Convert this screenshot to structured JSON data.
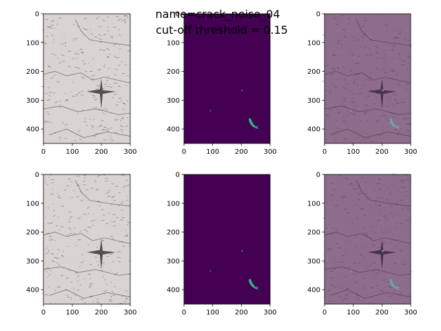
{
  "suptitle": [
    "name=crack_noise_04",
    "cut-off threshold = 0.15"
  ],
  "chart_data": [
    {
      "type": "image",
      "color": "#d9d3d1",
      "xlim": [
        0,
        300
      ],
      "ylim": [
        450,
        0
      ],
      "xticks": [
        0,
        100,
        200,
        300
      ],
      "yticks": [
        0,
        100,
        200,
        300,
        400
      ]
    },
    {
      "type": "mask",
      "color": "#440154",
      "xlim": [
        0,
        300
      ],
      "ylim": [
        450,
        0
      ],
      "xticks": [
        0,
        100,
        200,
        300
      ],
      "yticks": [
        0,
        100,
        200,
        300,
        400
      ]
    },
    {
      "type": "overlay",
      "color": "#8e6d8c",
      "xlim": [
        0,
        300
      ],
      "ylim": [
        450,
        0
      ],
      "xticks": [
        0,
        100,
        200,
        300
      ],
      "yticks": [
        0,
        100,
        200,
        300,
        400
      ]
    },
    {
      "type": "image",
      "color": "#d9d3d1",
      "xlim": [
        0,
        300
      ],
      "ylim": [
        450,
        0
      ],
      "xticks": [
        0,
        100,
        200,
        300
      ],
      "yticks": [
        0,
        100,
        200,
        300,
        400
      ]
    },
    {
      "type": "mask",
      "color": "#440154",
      "xlim": [
        0,
        300
      ],
      "ylim": [
        450,
        0
      ],
      "xticks": [
        0,
        100,
        200,
        300
      ],
      "yticks": [
        0,
        100,
        200,
        300,
        400
      ]
    },
    {
      "type": "overlay",
      "color": "#8e6d8c",
      "xlim": [
        0,
        300
      ],
      "ylim": [
        450,
        0
      ],
      "xticks": [
        0,
        100,
        200,
        300
      ],
      "yticks": [
        0,
        100,
        200,
        300,
        400
      ]
    }
  ]
}
